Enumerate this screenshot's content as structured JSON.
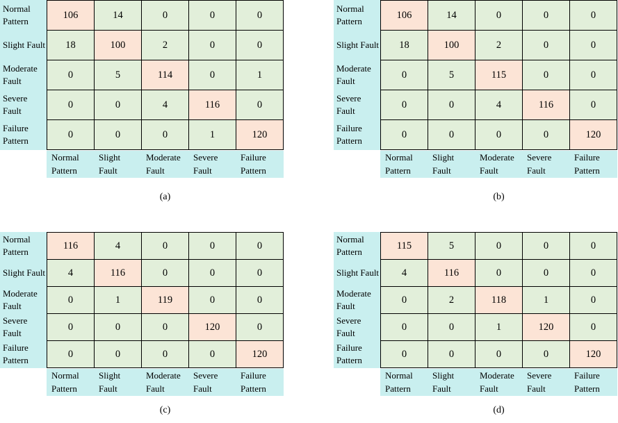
{
  "labels": {
    "classes": [
      "Normal Pattern",
      "Slight Fault",
      "Moderate Fault",
      "Severe Fault",
      "Failure Pattern"
    ]
  },
  "colors": {
    "diagonal": "#fce4d6",
    "off_diagonal": "#e2efda",
    "header": "#c9efef",
    "border": "#000000"
  },
  "matrices": [
    {
      "caption": "(a)",
      "rows": [
        [
          106,
          14,
          0,
          0,
          0
        ],
        [
          18,
          100,
          2,
          0,
          0
        ],
        [
          0,
          5,
          114,
          0,
          1
        ],
        [
          0,
          0,
          4,
          116,
          0
        ],
        [
          0,
          0,
          0,
          1,
          120
        ]
      ]
    },
    {
      "caption": "(b)",
      "rows": [
        [
          106,
          14,
          0,
          0,
          0
        ],
        [
          18,
          100,
          2,
          0,
          0
        ],
        [
          0,
          5,
          115,
          0,
          0
        ],
        [
          0,
          0,
          4,
          116,
          0
        ],
        [
          0,
          0,
          0,
          0,
          120
        ]
      ]
    },
    {
      "caption": "(c)",
      "rows": [
        [
          116,
          4,
          0,
          0,
          0
        ],
        [
          4,
          116,
          0,
          0,
          0
        ],
        [
          0,
          1,
          119,
          0,
          0
        ],
        [
          0,
          0,
          0,
          120,
          0
        ],
        [
          0,
          0,
          0,
          0,
          120
        ]
      ]
    },
    {
      "caption": "(d)",
      "rows": [
        [
          115,
          5,
          0,
          0,
          0
        ],
        [
          4,
          116,
          0,
          0,
          0
        ],
        [
          0,
          2,
          118,
          1,
          0
        ],
        [
          0,
          0,
          1,
          120,
          0
        ],
        [
          0,
          0,
          0,
          0,
          120
        ]
      ]
    }
  ],
  "chart_data": [
    {
      "type": "heatmap",
      "title": "(a)",
      "x_categories": [
        "Normal Pattern",
        "Slight Fault",
        "Moderate Fault",
        "Severe Fault",
        "Failure Pattern"
      ],
      "y_categories": [
        "Normal Pattern",
        "Slight Fault",
        "Moderate Fault",
        "Severe Fault",
        "Failure Pattern"
      ],
      "values": [
        [
          106,
          14,
          0,
          0,
          0
        ],
        [
          18,
          100,
          2,
          0,
          0
        ],
        [
          0,
          5,
          114,
          0,
          1
        ],
        [
          0,
          0,
          4,
          116,
          0
        ],
        [
          0,
          0,
          0,
          1,
          120
        ]
      ],
      "diagonal_color": "#fce4d6",
      "off_diagonal_color": "#e2efda",
      "label_strip_color": "#c9efef"
    },
    {
      "type": "heatmap",
      "title": "(b)",
      "x_categories": [
        "Normal Pattern",
        "Slight Fault",
        "Moderate Fault",
        "Severe Fault",
        "Failure Pattern"
      ],
      "y_categories": [
        "Normal Pattern",
        "Slight Fault",
        "Moderate Fault",
        "Severe Fault",
        "Failure Pattern"
      ],
      "values": [
        [
          106,
          14,
          0,
          0,
          0
        ],
        [
          18,
          100,
          2,
          0,
          0
        ],
        [
          0,
          5,
          115,
          0,
          0
        ],
        [
          0,
          0,
          4,
          116,
          0
        ],
        [
          0,
          0,
          0,
          0,
          120
        ]
      ],
      "diagonal_color": "#fce4d6",
      "off_diagonal_color": "#e2efda",
      "label_strip_color": "#c9efef"
    },
    {
      "type": "heatmap",
      "title": "(c)",
      "x_categories": [
        "Normal Pattern",
        "Slight Fault",
        "Moderate Fault",
        "Severe Fault",
        "Failure Pattern"
      ],
      "y_categories": [
        "Normal Pattern",
        "Slight Fault",
        "Moderate Fault",
        "Severe Fault",
        "Failure Pattern"
      ],
      "values": [
        [
          116,
          4,
          0,
          0,
          0
        ],
        [
          4,
          116,
          0,
          0,
          0
        ],
        [
          0,
          1,
          119,
          0,
          0
        ],
        [
          0,
          0,
          0,
          120,
          0
        ],
        [
          0,
          0,
          0,
          0,
          120
        ]
      ],
      "diagonal_color": "#fce4d6",
      "off_diagonal_color": "#e2efda",
      "label_strip_color": "#c9efef"
    },
    {
      "type": "heatmap",
      "title": "(d)",
      "x_categories": [
        "Normal Pattern",
        "Slight Fault",
        "Moderate Fault",
        "Severe Fault",
        "Failure Pattern"
      ],
      "y_categories": [
        "Normal Pattern",
        "Slight Fault",
        "Moderate Fault",
        "Severe Fault",
        "Failure Pattern"
      ],
      "values": [
        [
          115,
          5,
          0,
          0,
          0
        ],
        [
          4,
          116,
          0,
          0,
          0
        ],
        [
          0,
          2,
          118,
          1,
          0
        ],
        [
          0,
          0,
          1,
          120,
          0
        ],
        [
          0,
          0,
          0,
          0,
          120
        ]
      ],
      "diagonal_color": "#fce4d6",
      "off_diagonal_color": "#e2efda",
      "label_strip_color": "#c9efef"
    }
  ]
}
